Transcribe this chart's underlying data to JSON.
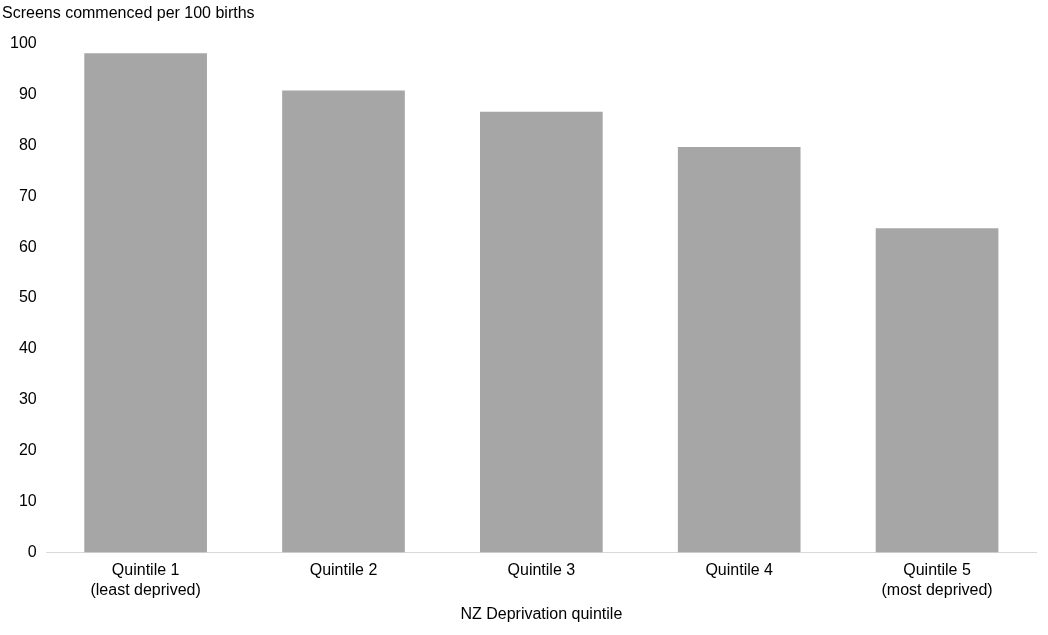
{
  "chart_data": {
    "type": "bar",
    "ylabel": "Screens commenced per 100 births",
    "xlabel": "NZ Deprivation quintile",
    "categories": [
      "Quintile 1\n(least deprived)",
      "Quintile 2",
      "Quintile 3",
      "Quintile 4",
      "Quintile 5\n(most deprived)"
    ],
    "values": [
      98.1,
      90.8,
      86.6,
      79.7,
      63.7
    ],
    "color": "#a6a6a6",
    "ylim": [
      0,
      100
    ],
    "yticks": [
      0,
      10,
      20,
      30,
      40,
      50,
      60,
      70,
      80,
      90,
      100
    ],
    "grid": false,
    "legend": false
  }
}
